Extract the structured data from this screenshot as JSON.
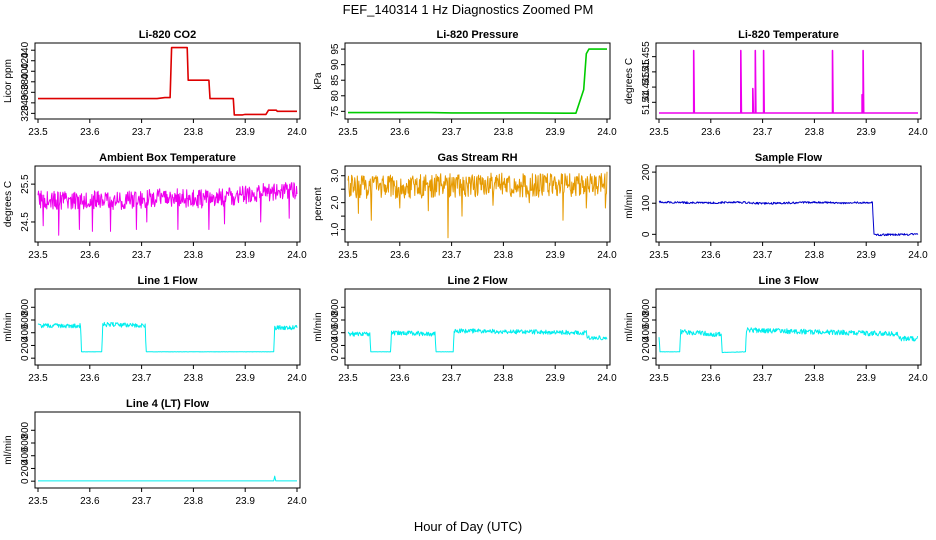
{
  "figure": {
    "title": "FEF_140314  1 Hz Diagnostics Zoomed PM",
    "xlabel": "Hour of Day (UTC)"
  },
  "chart_data": [
    {
      "id": "co2",
      "type": "line",
      "title": "Li-820 CO2",
      "ylabel": "Licor ppm",
      "color": "#dd0000",
      "xlim": [
        23.5,
        24.0
      ],
      "ylim": [
        315,
        448
      ],
      "xticks": [
        "23.5",
        "23.6",
        "23.7",
        "23.8",
        "23.9",
        "24.0"
      ],
      "yticks": [
        320,
        340,
        360,
        380,
        400,
        420,
        440
      ],
      "x": [
        23.5,
        23.73,
        23.745,
        23.755,
        23.758,
        23.788,
        23.79,
        23.83,
        23.832,
        23.877,
        23.879,
        23.895,
        23.9,
        23.94,
        23.945,
        23.96,
        23.962,
        24.0
      ],
      "y": [
        348,
        348,
        350,
        350,
        445,
        445,
        383,
        383,
        348,
        348,
        317,
        317,
        318,
        318,
        326,
        326,
        324,
        324
      ]
    },
    {
      "id": "pressure",
      "type": "line",
      "title": "Li-820 Pressure",
      "ylabel": "kPa",
      "color": "#00cc00",
      "xlim": [
        23.5,
        24.0
      ],
      "ylim": [
        73.5,
        96
      ],
      "xticks": [
        "23.5",
        "23.6",
        "23.7",
        "23.8",
        "23.9",
        "24.0"
      ],
      "yticks": [
        75,
        80,
        85,
        90,
        95
      ],
      "x": [
        23.5,
        23.66,
        23.7,
        23.85,
        23.92,
        23.94,
        23.955,
        23.96,
        23.965,
        24.0
      ],
      "y": [
        74.6,
        74.6,
        74.5,
        74.5,
        74.4,
        74.4,
        82.0,
        93.5,
        95.0,
        95.0
      ]
    },
    {
      "id": "temp",
      "type": "line",
      "title": "Li-820 Temperature",
      "ylabel": "degrees C",
      "color": "#ee00ee",
      "xlim": [
        23.5,
        24.0
      ],
      "ylim": [
        51.4355,
        51.4585
      ],
      "xticks": [
        "23.5",
        "23.6",
        "23.7",
        "23.8",
        "23.9",
        "24.0"
      ],
      "yticks": [
        51.44,
        51.445,
        51.45,
        51.455
      ],
      "baseline": 51.4365,
      "spikes": [
        {
          "x": 23.567,
          "y": 51.457
        },
        {
          "x": 23.658,
          "y": 51.457
        },
        {
          "x": 23.681,
          "y": 51.4445
        },
        {
          "x": 23.686,
          "y": 51.457
        },
        {
          "x": 23.702,
          "y": 51.457
        },
        {
          "x": 23.835,
          "y": 51.457
        },
        {
          "x": 23.892,
          "y": 51.4425
        },
        {
          "x": 23.894,
          "y": 51.457
        }
      ]
    },
    {
      "id": "ambient",
      "type": "line",
      "title": "Ambient Box Temperature",
      "ylabel": "degrees C",
      "color": "#ee00ee",
      "xlim": [
        23.5,
        24.0
      ],
      "ylim": [
        24.05,
        25.9
      ],
      "xticks": [
        "23.5",
        "23.6",
        "23.7",
        "23.8",
        "23.9",
        "24.0"
      ],
      "yticks": [
        24.5,
        25.5
      ],
      "x": [
        23.5,
        23.55,
        23.6,
        23.65,
        23.7,
        23.75,
        23.8,
        23.85,
        23.9,
        23.95,
        24.0
      ],
      "y": [
        25.1,
        25.05,
        25.1,
        25.05,
        25.1,
        25.15,
        25.1,
        25.15,
        25.2,
        25.3,
        25.35
      ],
      "noise": 0.25,
      "dips": [
        {
          "x": 23.51,
          "y": 24.4
        },
        {
          "x": 23.54,
          "y": 24.15
        },
        {
          "x": 23.58,
          "y": 24.3
        },
        {
          "x": 23.605,
          "y": 24.25
        },
        {
          "x": 23.64,
          "y": 24.25
        },
        {
          "x": 23.69,
          "y": 24.3
        },
        {
          "x": 23.71,
          "y": 24.5
        },
        {
          "x": 23.77,
          "y": 24.3
        },
        {
          "x": 23.83,
          "y": 24.3
        },
        {
          "x": 23.86,
          "y": 24.45
        },
        {
          "x": 23.93,
          "y": 24.5
        },
        {
          "x": 23.985,
          "y": 24.6
        }
      ]
    },
    {
      "id": "rh",
      "type": "line",
      "title": "Gas Stream RH",
      "ylabel": "percent",
      "color": "#e69a00",
      "xlim": [
        23.5,
        24.0
      ],
      "ylim": [
        0.65,
        3.25
      ],
      "xticks": [
        "23.5",
        "23.6",
        "23.7",
        "23.8",
        "23.9",
        "24.0"
      ],
      "yticks": [
        1.0,
        1.5,
        2.0,
        2.5,
        3.0
      ],
      "yticklabels": [
        "1.0",
        "",
        "2.0",
        "",
        "3.0"
      ],
      "x": [
        23.5,
        23.6,
        23.7,
        23.8,
        23.9,
        24.0
      ],
      "y": [
        2.6,
        2.6,
        2.65,
        2.65,
        2.65,
        2.7
      ],
      "noise": 0.45,
      "dips": [
        {
          "x": 23.52,
          "y": 1.6
        },
        {
          "x": 23.545,
          "y": 1.35
        },
        {
          "x": 23.6,
          "y": 1.8
        },
        {
          "x": 23.655,
          "y": 1.7
        },
        {
          "x": 23.693,
          "y": 0.7
        },
        {
          "x": 23.72,
          "y": 1.5
        },
        {
          "x": 23.78,
          "y": 1.9
        },
        {
          "x": 23.85,
          "y": 2.0
        },
        {
          "x": 23.915,
          "y": 1.35
        },
        {
          "x": 23.96,
          "y": 1.8
        },
        {
          "x": 23.997,
          "y": 1.8
        }
      ]
    },
    {
      "id": "sample",
      "type": "line",
      "title": "Sample Flow",
      "ylabel": "ml/min",
      "color": "#0000cc",
      "xlim": [
        23.5,
        24.0
      ],
      "ylim": [
        -15,
        210
      ],
      "xticks": [
        "23.5",
        "23.6",
        "23.7",
        "23.8",
        "23.9",
        "24.0"
      ],
      "yticks": [
        0,
        100,
        200
      ],
      "x": [
        23.5,
        23.55,
        23.6,
        23.65,
        23.7,
        23.75,
        23.8,
        23.85,
        23.9,
        23.912,
        23.915,
        23.95,
        24.0
      ],
      "y": [
        104,
        102,
        101,
        104,
        99,
        101,
        103,
        101,
        102,
        102,
        -2,
        -1,
        0
      ],
      "noise": 3
    },
    {
      "id": "line1",
      "type": "line",
      "title": "Line 1 Flow",
      "ylabel": "ml/min",
      "color": "#00eeee",
      "xlim": [
        23.5,
        24.0
      ],
      "ylim": [
        -60,
        1040
      ],
      "xticks": [
        "23.5",
        "23.6",
        "23.7",
        "23.8",
        "23.9",
        "24.0"
      ],
      "yticks": [
        0,
        200,
        400,
        600,
        800
      ],
      "x": [
        23.5,
        23.582,
        23.584,
        23.623,
        23.625,
        23.707,
        23.709,
        23.955,
        23.957,
        24.0
      ],
      "y": [
        510,
        510,
        100,
        100,
        530,
        510,
        100,
        100,
        480,
        480
      ],
      "noise": 35
    },
    {
      "id": "line2",
      "type": "line",
      "title": "Line 2 Flow",
      "ylabel": "ml/min",
      "color": "#00eeee",
      "xlim": [
        23.5,
        24.0
      ],
      "ylim": [
        -60,
        1040
      ],
      "xticks": [
        "23.5",
        "23.6",
        "23.7",
        "23.8",
        "23.9",
        "24.0"
      ],
      "yticks": [
        0,
        200,
        400,
        600,
        800
      ],
      "x": [
        23.5,
        23.542,
        23.544,
        23.582,
        23.584,
        23.668,
        23.67,
        23.703,
        23.705,
        23.96,
        23.962,
        24.0
      ],
      "y": [
        380,
        380,
        100,
        100,
        400,
        380,
        100,
        100,
        430,
        400,
        320,
        320
      ],
      "noise": 35
    },
    {
      "id": "line3",
      "type": "line",
      "title": "Line 3 Flow",
      "ylabel": "ml/min",
      "color": "#00eeee",
      "xlim": [
        23.5,
        24.0
      ],
      "ylim": [
        -60,
        1040
      ],
      "xticks": [
        "23.5",
        "23.6",
        "23.7",
        "23.8",
        "23.9",
        "24.0"
      ],
      "yticks": [
        0,
        200,
        400,
        600,
        800
      ],
      "x": [
        23.5,
        23.502,
        23.54,
        23.542,
        23.62,
        23.622,
        23.667,
        23.669,
        23.96,
        23.962,
        24.0
      ],
      "y": [
        300,
        100,
        100,
        420,
        370,
        90,
        100,
        440,
        380,
        310,
        310
      ],
      "noise": 40
    },
    {
      "id": "line4",
      "type": "line",
      "title": "Line 4 (LT) Flow",
      "ylabel": "ml/min",
      "color": "#00eeee",
      "xlim": [
        23.5,
        24.0
      ],
      "ylim": [
        -60,
        1040
      ],
      "xticks": [
        "23.5",
        "23.6",
        "23.7",
        "23.8",
        "23.9",
        "24.0"
      ],
      "yticks": [
        0,
        200,
        400,
        600,
        800
      ],
      "x": [
        23.5,
        23.6,
        23.7,
        23.8,
        23.9,
        23.955,
        23.957,
        23.959,
        24.0
      ],
      "y": [
        5,
        5,
        5,
        5,
        5,
        5,
        80,
        5,
        5
      ],
      "noise": 3
    }
  ]
}
